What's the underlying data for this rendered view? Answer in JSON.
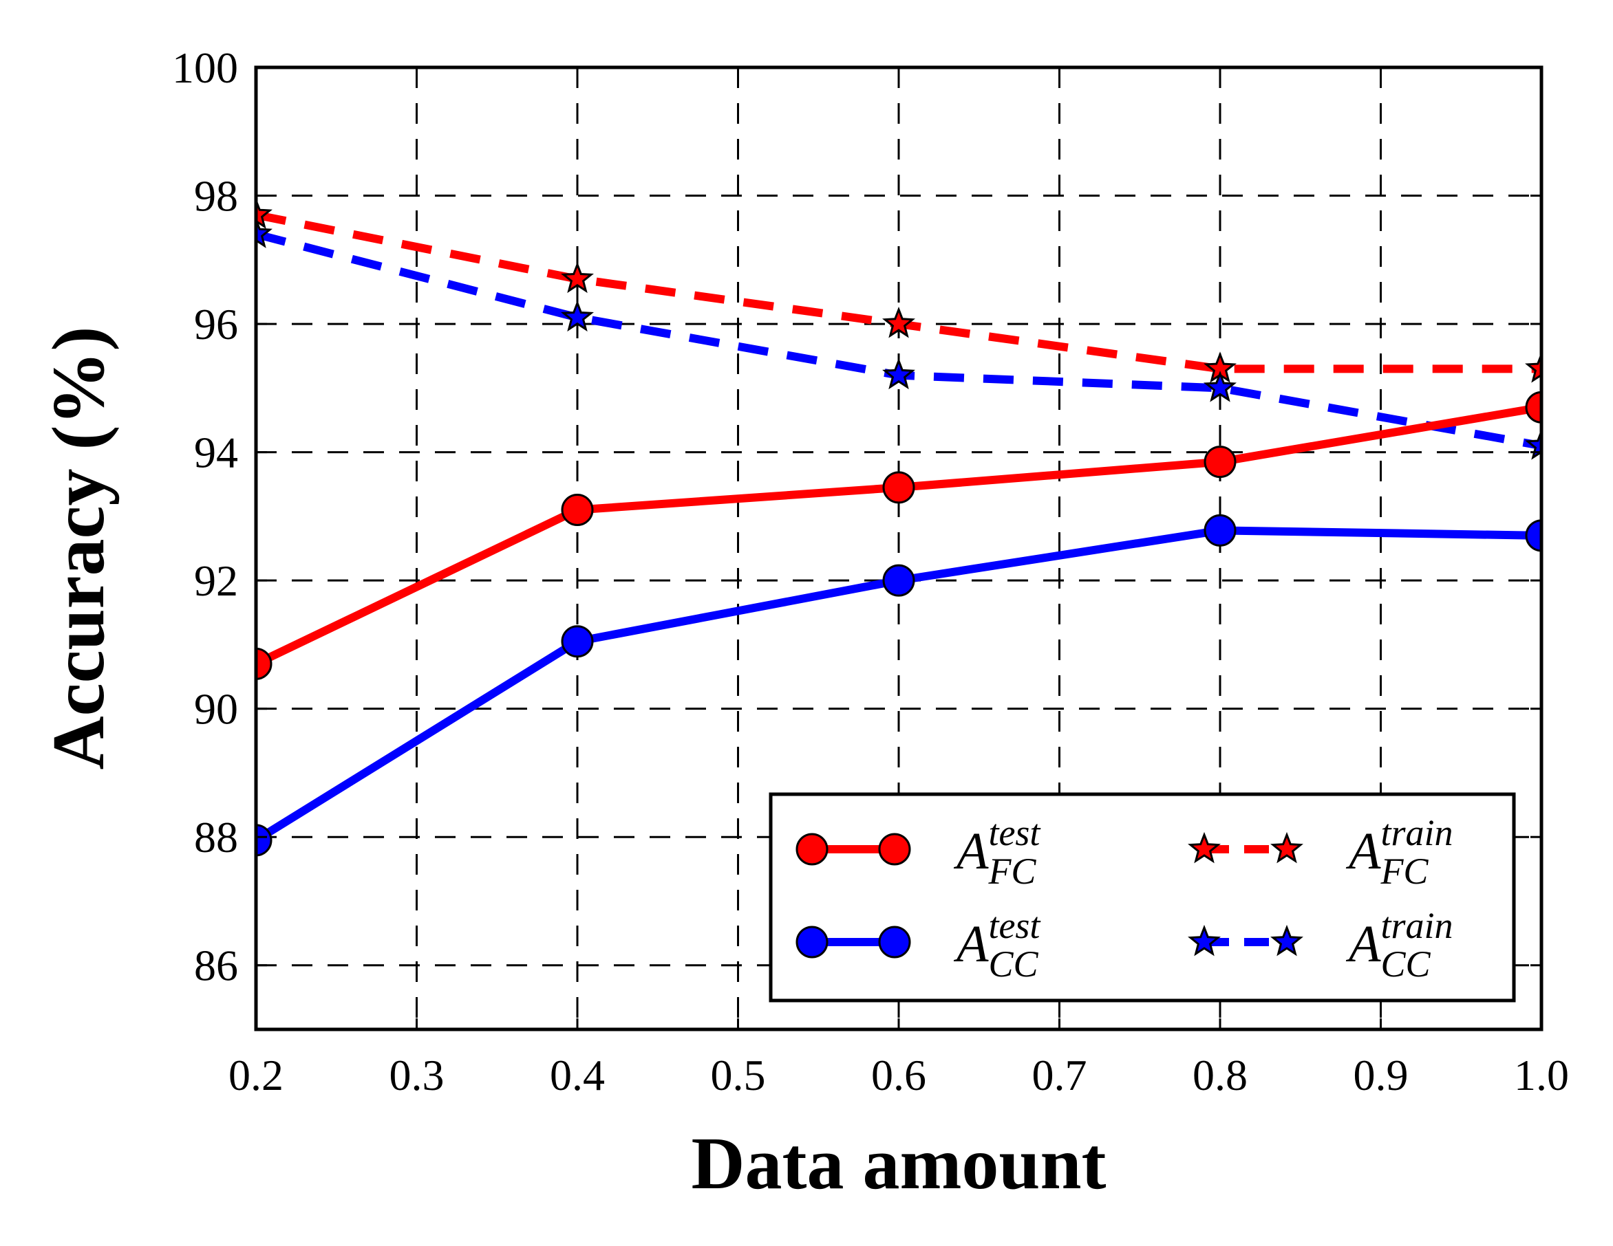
{
  "chart_data": {
    "type": "line",
    "title": "",
    "xlabel": "Data amount",
    "ylabel": "Accuracy (%)",
    "xlim": [
      0.2,
      1.0
    ],
    "ylim": [
      85,
      100
    ],
    "xticks": [
      "0.2",
      "0.3",
      "0.4",
      "0.5",
      "0.6",
      "0.7",
      "0.8",
      "0.9",
      "1.0"
    ],
    "yticks": [
      "86",
      "88",
      "90",
      "92",
      "94",
      "96",
      "98",
      "100"
    ],
    "grid": true,
    "legend_position": "bottom-right",
    "x": [
      0.2,
      0.4,
      0.6,
      0.8,
      1.0
    ],
    "series": [
      {
        "name": "A_FC^test",
        "label_main": "A",
        "label_sub": "FC",
        "label_sup": "test",
        "color": "#ff0000",
        "line": "solid",
        "marker": "circle",
        "values": [
          90.7,
          93.1,
          93.45,
          93.85,
          94.7
        ]
      },
      {
        "name": "A_CC^test",
        "label_main": "A",
        "label_sub": "CC",
        "label_sup": "test",
        "color": "#0000ff",
        "line": "solid",
        "marker": "circle",
        "values": [
          87.95,
          91.05,
          92.0,
          92.78,
          92.7
        ]
      },
      {
        "name": "A_FC^train",
        "label_main": "A",
        "label_sub": "FC",
        "label_sup": "train",
        "color": "#ff0000",
        "line": "dashed",
        "marker": "star",
        "values": [
          97.7,
          96.7,
          96.0,
          95.3,
          95.3
        ]
      },
      {
        "name": "A_CC^train",
        "label_main": "A",
        "label_sub": "CC",
        "label_sup": "train",
        "color": "#0000ff",
        "line": "dashed",
        "marker": "star",
        "values": [
          97.4,
          96.1,
          95.2,
          95.0,
          94.1
        ]
      }
    ]
  }
}
